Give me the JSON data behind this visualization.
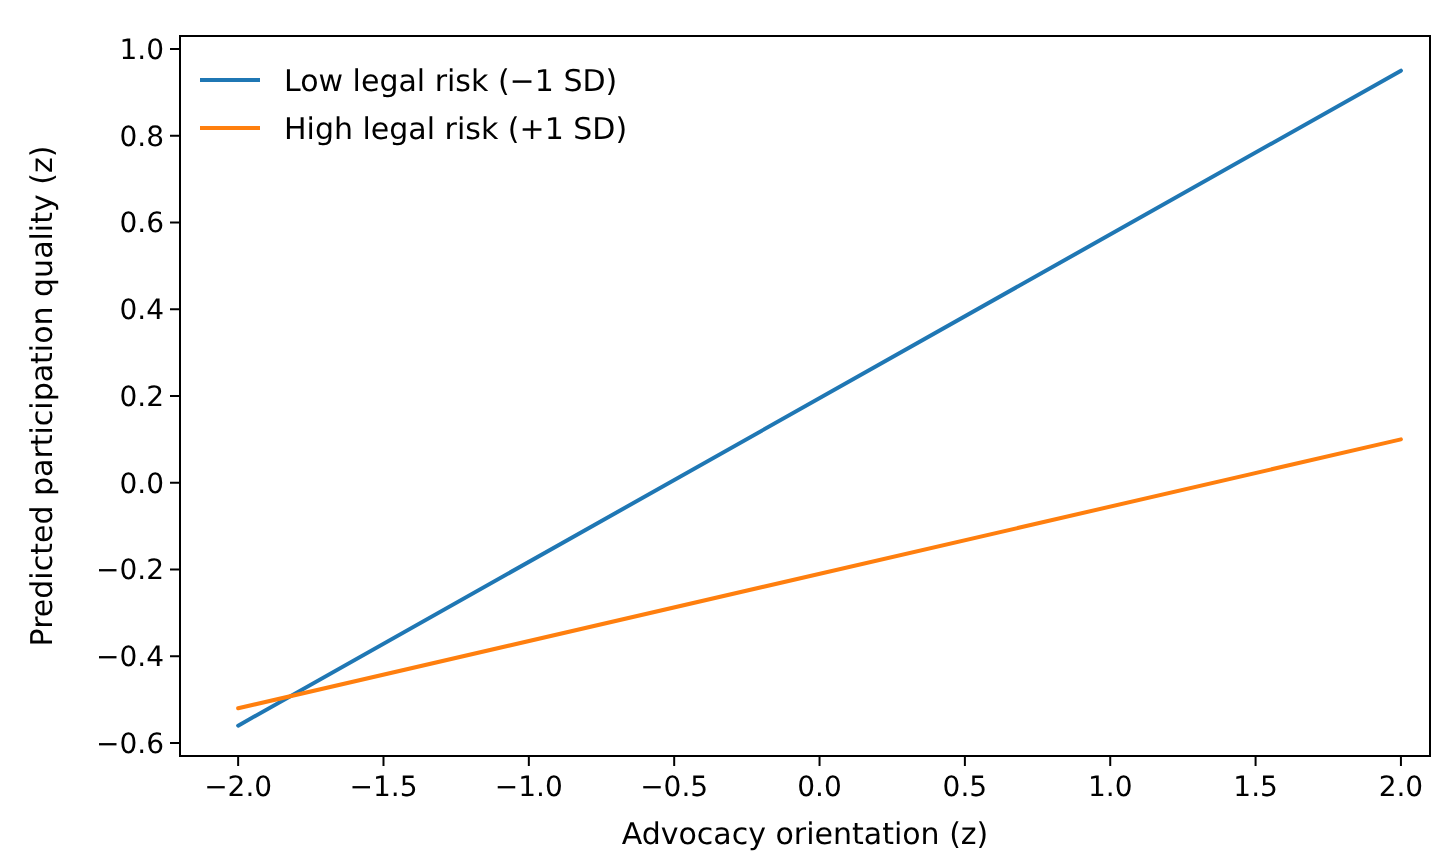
{
  "chart_data": {
    "type": "line",
    "xlabel": "Advocacy orientation (z)",
    "ylabel": "Predicted participation quality (z)",
    "x": [
      -2,
      2
    ],
    "series": [
      {
        "name": "Low legal risk (−1 SD)",
        "color": "#1f77b4",
        "values": [
          -0.56,
          0.95
        ]
      },
      {
        "name": "High legal risk (+1 SD)",
        "color": "#ff7f0e",
        "values": [
          -0.52,
          0.1
        ]
      }
    ],
    "xlim": [
      -2.2,
      2.1
    ],
    "ylim": [
      -0.63,
      1.03
    ],
    "xticks": [
      {
        "value": -2,
        "label": "−2.0"
      },
      {
        "value": -1.5,
        "label": "−1.5"
      },
      {
        "value": -1,
        "label": "−1.0"
      },
      {
        "value": -0.5,
        "label": "−0.5"
      },
      {
        "value": 0,
        "label": "0.0"
      },
      {
        "value": 0.5,
        "label": "0.5"
      },
      {
        "value": 1,
        "label": "1.0"
      },
      {
        "value": 1.5,
        "label": "1.5"
      },
      {
        "value": 2,
        "label": "2.0"
      }
    ],
    "yticks": [
      {
        "value": -0.6,
        "label": "−0.6"
      },
      {
        "value": -0.4,
        "label": "−0.4"
      },
      {
        "value": -0.2,
        "label": "−0.2"
      },
      {
        "value": 0,
        "label": "0.0"
      },
      {
        "value": 0.2,
        "label": "0.2"
      },
      {
        "value": 0.4,
        "label": "0.4"
      },
      {
        "value": 0.6,
        "label": "0.6"
      },
      {
        "value": 0.8,
        "label": "0.8"
      },
      {
        "value": 1,
        "label": "1.0"
      }
    ],
    "legend": "top left",
    "marker": "none",
    "line_style": "solid"
  }
}
